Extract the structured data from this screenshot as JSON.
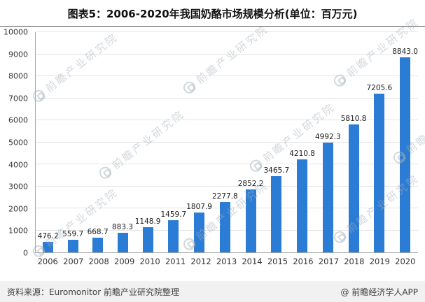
{
  "title": "图表5：2006-2020年我国奶酪市场规模分析(单位：百万元)",
  "watermark": {
    "text": "前瞻产业研究院"
  },
  "footer": {
    "source": "资料来源：Euromonitor 前瞻产业研究院整理",
    "brand": "@ 前瞻经济学人APP"
  },
  "chart_data": {
    "type": "bar",
    "title": "图表5：2006-2020年我国奶酪市场规模分析(单位：百万元)",
    "unit": "百万元",
    "categories": [
      "2006",
      "2007",
      "2008",
      "2009",
      "2010",
      "2011",
      "2012",
      "2013",
      "2014",
      "2015",
      "2016",
      "2017",
      "2018",
      "2019",
      "2020"
    ],
    "values": [
      476.2,
      559.7,
      668.7,
      883.3,
      1148.9,
      1459.7,
      1807.9,
      2277.8,
      2852.2,
      3465.7,
      4210.8,
      4992.3,
      5810.8,
      7205.6,
      8843.0
    ],
    "xlabel": "",
    "ylabel": "",
    "ylim": [
      0,
      10000
    ],
    "ytick_step": 1000,
    "bar_color": "#2b7cd5",
    "grid": true,
    "legend_position": "none",
    "value_labels": true
  }
}
